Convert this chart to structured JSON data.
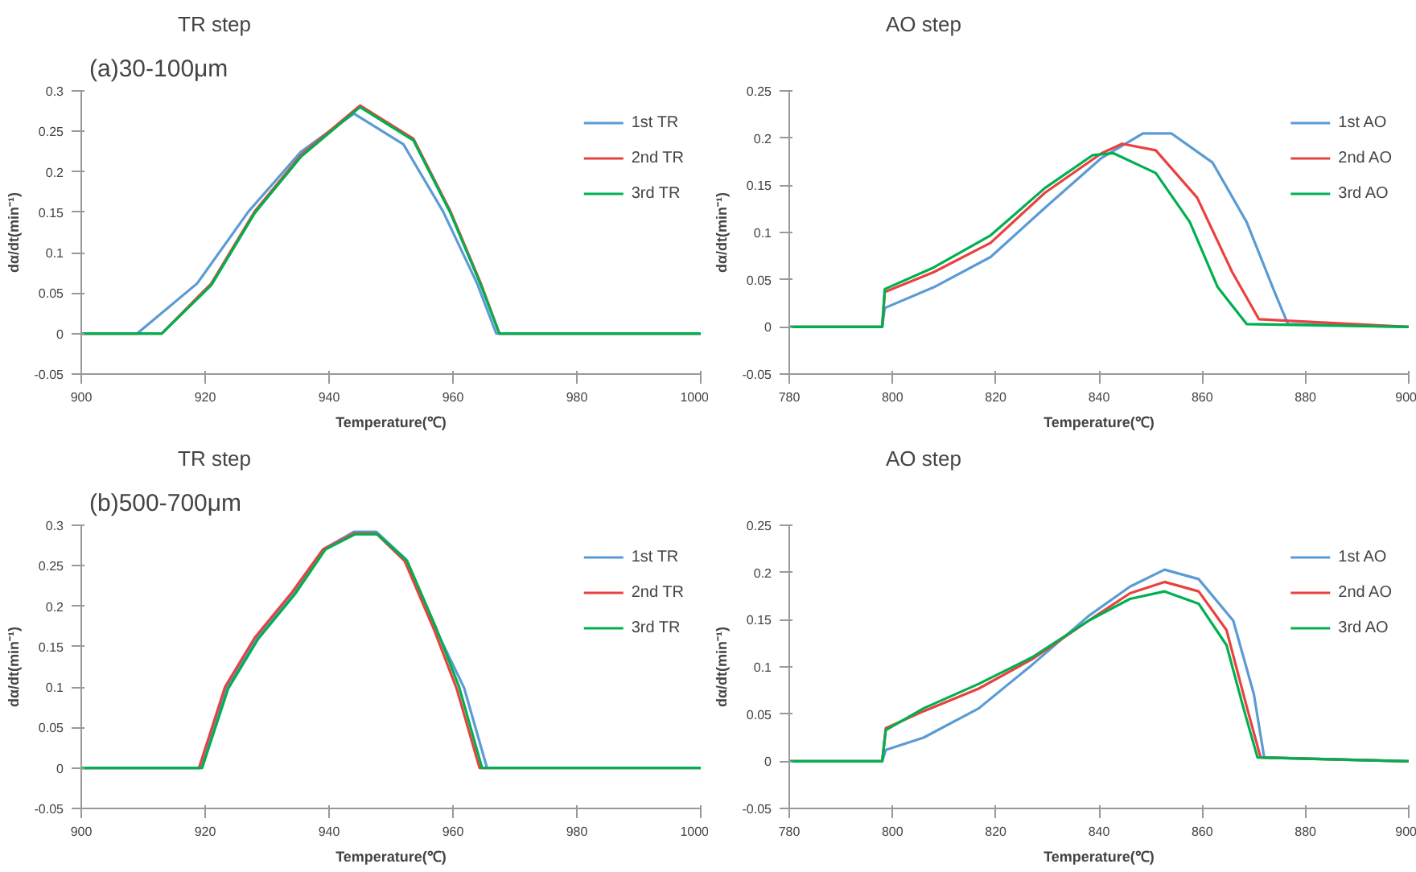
{
  "chart_data": [
    {
      "type": "line",
      "title": "TR step",
      "annotations": [
        "(a)30-100μm"
      ],
      "xlabel": "Temperature(℃)",
      "ylabel": "dα/dt(min⁻¹)",
      "xlim": [
        900,
        1000
      ],
      "ylim": [
        -0.05,
        0.3
      ],
      "xticks": [
        900,
        920,
        940,
        960,
        980,
        1000
      ],
      "yticks": [
        -0.05,
        0,
        0.05,
        0.1,
        0.15,
        0.2,
        0.25,
        0.3
      ],
      "legend": "top right",
      "series": [
        {
          "name": "1st TR",
          "color": "#5b9bd5",
          "x": [
            900,
            909,
            918.7,
            927,
            935.5,
            944,
            952,
            958.4,
            963.9,
            967,
            1000
          ],
          "values": [
            0,
            0,
            0.062,
            0.151,
            0.225,
            0.272,
            0.234,
            0.151,
            0.062,
            0,
            0
          ]
        },
        {
          "name": "2nd TR",
          "color": "#e8423f",
          "x": [
            900,
            913,
            921,
            928,
            935.5,
            945,
            953.6,
            959.6,
            964.5,
            967.5,
            1000
          ],
          "values": [
            0,
            0,
            0.062,
            0.151,
            0.221,
            0.282,
            0.241,
            0.151,
            0.062,
            0,
            0
          ]
        },
        {
          "name": "3rd TR",
          "color": "#00b050",
          "x": [
            900,
            913,
            921,
            928,
            935.5,
            945,
            953.6,
            959.6,
            964.5,
            967.5,
            1000
          ],
          "values": [
            0,
            0,
            0.06,
            0.149,
            0.219,
            0.28,
            0.239,
            0.149,
            0.06,
            0,
            0
          ]
        }
      ]
    },
    {
      "type": "line",
      "title": "AO step",
      "xlabel": "Temperature(℃)",
      "ylabel": "dα/dt(min⁻¹)",
      "xlim": [
        780,
        900
      ],
      "ylim": [
        -0.05,
        0.25
      ],
      "xticks": [
        780,
        800,
        820,
        840,
        860,
        880,
        900
      ],
      "yticks": [
        -0.05,
        0,
        0.05,
        0.1,
        0.15,
        0.2,
        0.25
      ],
      "legend": "top right",
      "series": [
        {
          "name": "1st AO",
          "color": "#5b9bd5",
          "x": [
            780,
            798,
            798.5,
            808,
            819,
            829.5,
            840.5,
            848.5,
            854,
            862,
            868.6,
            874,
            876.6,
            900
          ],
          "values": [
            0,
            0,
            0.02,
            0.042,
            0.074,
            0.126,
            0.179,
            0.205,
            0.205,
            0.174,
            0.111,
            0.037,
            0.003,
            0
          ]
        },
        {
          "name": "2nd AO",
          "color": "#e8423f",
          "x": [
            780,
            798,
            798.5,
            808,
            819,
            829.5,
            840.5,
            844.5,
            851,
            859,
            865.8,
            871,
            900
          ],
          "values": [
            0,
            0,
            0.037,
            0.058,
            0.089,
            0.142,
            0.184,
            0.194,
            0.187,
            0.137,
            0.058,
            0.008,
            0
          ]
        },
        {
          "name": "3rd AO",
          "color": "#00b050",
          "x": [
            780,
            798,
            798.5,
            808,
            819,
            829.5,
            838.8,
            842.8,
            851,
            857.6,
            863,
            868.6,
            900
          ],
          "values": [
            0,
            0,
            0.04,
            0.063,
            0.097,
            0.147,
            0.182,
            0.184,
            0.163,
            0.111,
            0.042,
            0.003,
            0
          ]
        }
      ]
    },
    {
      "type": "line",
      "title": "TR step",
      "annotations": [
        "(b)500-700μm"
      ],
      "xlabel": "Temperature(℃)",
      "ylabel": "dα/dt(min⁻¹)",
      "xlim": [
        900,
        1000
      ],
      "ylim": [
        -0.05,
        0.3
      ],
      "xticks": [
        900,
        920,
        940,
        960,
        980,
        1000
      ],
      "yticks": [
        -0.05,
        0,
        0.05,
        0.1,
        0.15,
        0.2,
        0.25,
        0.3
      ],
      "legend": "top right",
      "series": [
        {
          "name": "1st TR",
          "color": "#5b9bd5",
          "x": [
            900,
            919.3,
            923.5,
            928.3,
            934.3,
            939.2,
            944,
            947.6,
            952.4,
            957.2,
            961.8,
            965.5
          ],
          "values": [
            0,
            0,
            0.099,
            0.16,
            0.216,
            0.271,
            0.292,
            0.292,
            0.258,
            0.172,
            0.099,
            0
          ]
        },
        {
          "name": "2nd TR",
          "color": "#e8423f",
          "x": [
            900,
            919,
            923.2,
            928,
            934,
            939,
            944,
            947.6,
            952.2,
            957,
            960.6,
            964.3,
            1000
          ],
          "values": [
            0,
            0,
            0.1,
            0.161,
            0.217,
            0.27,
            0.29,
            0.29,
            0.256,
            0.17,
            0.098,
            0,
            0
          ]
        },
        {
          "name": "3rd TR",
          "color": "#00b050",
          "x": [
            900,
            919.5,
            923.7,
            928.5,
            934.5,
            939.4,
            944.2,
            947.8,
            952.6,
            957.4,
            961,
            964.7,
            1000
          ],
          "values": [
            0,
            0,
            0.098,
            0.159,
            0.215,
            0.27,
            0.289,
            0.289,
            0.256,
            0.171,
            0.1,
            0,
            0
          ]
        }
      ]
    },
    {
      "type": "line",
      "title": "AO step",
      "xlabel": "Temperature(℃)",
      "ylabel": "dα/dt(min⁻¹)",
      "xlim": [
        780,
        900
      ],
      "ylim": [
        -0.05,
        0.25
      ],
      "xticks": [
        780,
        800,
        820,
        840,
        860,
        880,
        900
      ],
      "yticks": [
        -0.05,
        0,
        0.05,
        0.1,
        0.15,
        0.2,
        0.25
      ],
      "legend": "top right",
      "series": [
        {
          "name": "1st AO",
          "color": "#5b9bd5",
          "x": [
            780,
            798,
            798.7,
            806,
            816.7,
            827,
            838,
            846,
            852.7,
            859.3,
            866,
            870,
            872,
            900
          ],
          "values": [
            0,
            0,
            0.012,
            0.025,
            0.056,
            0.102,
            0.154,
            0.185,
            0.203,
            0.193,
            0.149,
            0.071,
            0.004,
            0
          ]
        },
        {
          "name": "2nd AO",
          "color": "#e8423f",
          "x": [
            780,
            798,
            798.7,
            806,
            816.7,
            827,
            838,
            846,
            852.7,
            859.3,
            864.7,
            868.7,
            871.3,
            900
          ],
          "values": [
            0,
            0,
            0.035,
            0.053,
            0.077,
            0.108,
            0.149,
            0.178,
            0.19,
            0.18,
            0.139,
            0.056,
            0.004,
            0
          ]
        },
        {
          "name": "3rd AO",
          "color": "#00b050",
          "x": [
            780,
            798,
            798.7,
            806,
            816.7,
            827,
            838,
            846,
            852.7,
            859.3,
            864.7,
            868,
            870.7,
            900
          ],
          "values": [
            0,
            0,
            0.033,
            0.056,
            0.082,
            0.11,
            0.149,
            0.172,
            0.18,
            0.167,
            0.123,
            0.056,
            0.004,
            0
          ]
        }
      ]
    }
  ]
}
